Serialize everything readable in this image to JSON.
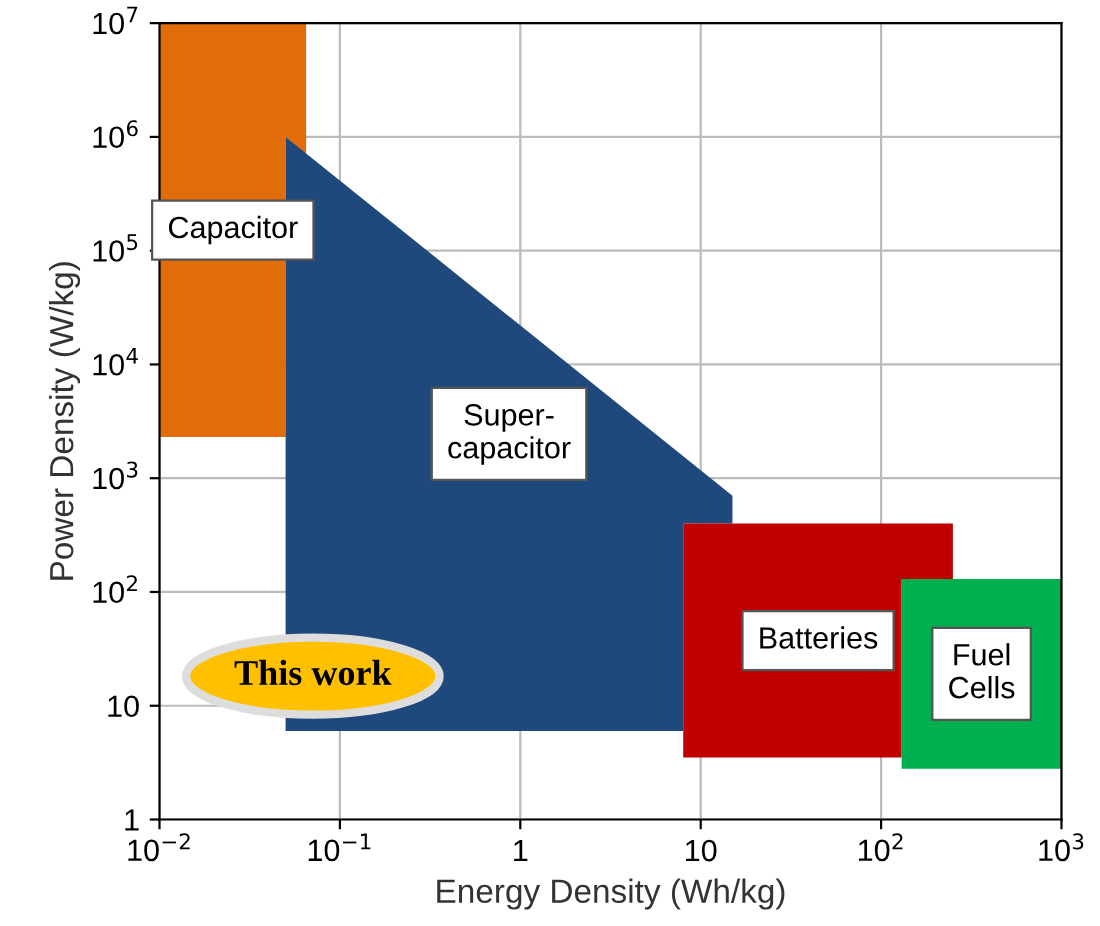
{
  "chart_data": {
    "type": "area",
    "xlabel": "Energy Density (Wh/kg)",
    "ylabel": "Power Density (W/kg)",
    "log": "xy",
    "grid": true,
    "legend": false,
    "xlim": [
      0.01,
      1000
    ],
    "ylim": [
      1,
      10000000
    ],
    "xticks": [
      {
        "value": 0.01,
        "label": "10$^{−2}$"
      },
      {
        "value": 0.1,
        "label": "10$^{−1}$"
      },
      1,
      10,
      {
        "value": 100,
        "label": "10$^{2}$"
      },
      {
        "value": 1000,
        "label": "10$^{3}$"
      }
    ],
    "yticks": [
      1,
      10,
      {
        "value": 100,
        "label": "10$^{2}$"
      },
      {
        "value": 1000,
        "label": "10$^{3}$"
      },
      {
        "value": 10000,
        "label": "10$^{4}$"
      },
      {
        "value": 100000,
        "label": "10$^{5}$"
      },
      {
        "value": 1000000,
        "label": "10$^{6}$"
      },
      {
        "value": 10000000,
        "label": "10$^{7}$"
      }
    ],
    "series": [
      {
        "name": "Capacitor",
        "color": "#e36c0a",
        "x": [
          0.01,
          0.01,
          0.065,
          0.065,
          0.05,
          0.05
        ],
        "values": [
          2300,
          10000000,
          10000000,
          700000,
          1000000,
          2300
        ]
      },
      {
        "name": "Super-\ncapacitor",
        "color": "#1f497d",
        "x": [
          0.05,
          0.05,
          15,
          15,
          8,
          8
        ],
        "values": [
          6,
          1000000,
          700,
          400,
          400,
          6
        ]
      },
      {
        "name": "Batteries",
        "color": "#c00000",
        "x": [
          8,
          8,
          250,
          250,
          130,
          130
        ],
        "values": [
          3.5,
          400,
          400,
          130,
          130,
          3.5
        ]
      },
      {
        "name": "Fuel\nCells",
        "color": "#00b050",
        "x": [
          130,
          130,
          1000,
          1000
        ],
        "values": [
          2.8,
          130,
          130,
          2.8
        ]
      }
    ],
    "annotations": [
      "This work"
    ]
  }
}
